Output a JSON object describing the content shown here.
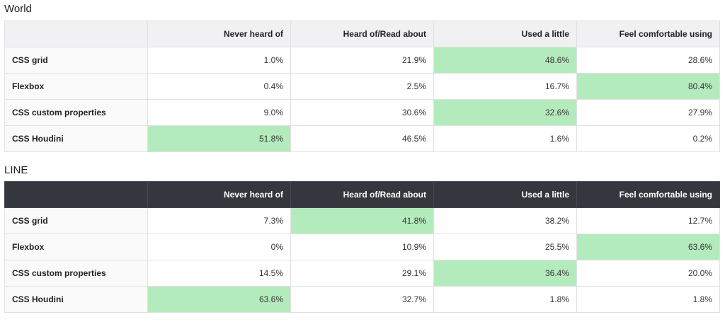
{
  "columns": [
    "Never heard of",
    "Heard of/Read about",
    "Used a little",
    "Feel comfortable using"
  ],
  "highlight_color": "#b4ebbd",
  "sections": [
    {
      "title": "World",
      "header_style": "light",
      "rows": [
        {
          "label": "CSS grid",
          "values": [
            "1.0%",
            "21.9%",
            "48.6%",
            "28.6%"
          ],
          "highlight": 2
        },
        {
          "label": "Flexbox",
          "values": [
            "0.4%",
            "2.5%",
            "16.7%",
            "80.4%"
          ],
          "highlight": 3
        },
        {
          "label": "CSS custom properties",
          "values": [
            "9.0%",
            "30.6%",
            "32.6%",
            "27.9%"
          ],
          "highlight": 2
        },
        {
          "label": "CSS Houdini",
          "values": [
            "51.8%",
            "46.5%",
            "1.6%",
            "0.2%"
          ],
          "highlight": 0
        }
      ]
    },
    {
      "title": "LINE",
      "header_style": "dark",
      "rows": [
        {
          "label": "CSS grid",
          "values": [
            "7.3%",
            "41.8%",
            "38.2%",
            "12.7%"
          ],
          "highlight": 1
        },
        {
          "label": "Flexbox",
          "values": [
            "0%",
            "10.9%",
            "25.5%",
            "63.6%"
          ],
          "highlight": 3
        },
        {
          "label": "CSS custom properties",
          "values": [
            "14.5%",
            "29.1%",
            "36.4%",
            "20.0%"
          ],
          "highlight": 2
        },
        {
          "label": "CSS Houdini",
          "values": [
            "63.6%",
            "32.7%",
            "1.8%",
            "1.8%"
          ],
          "highlight": 0
        }
      ]
    }
  ]
}
